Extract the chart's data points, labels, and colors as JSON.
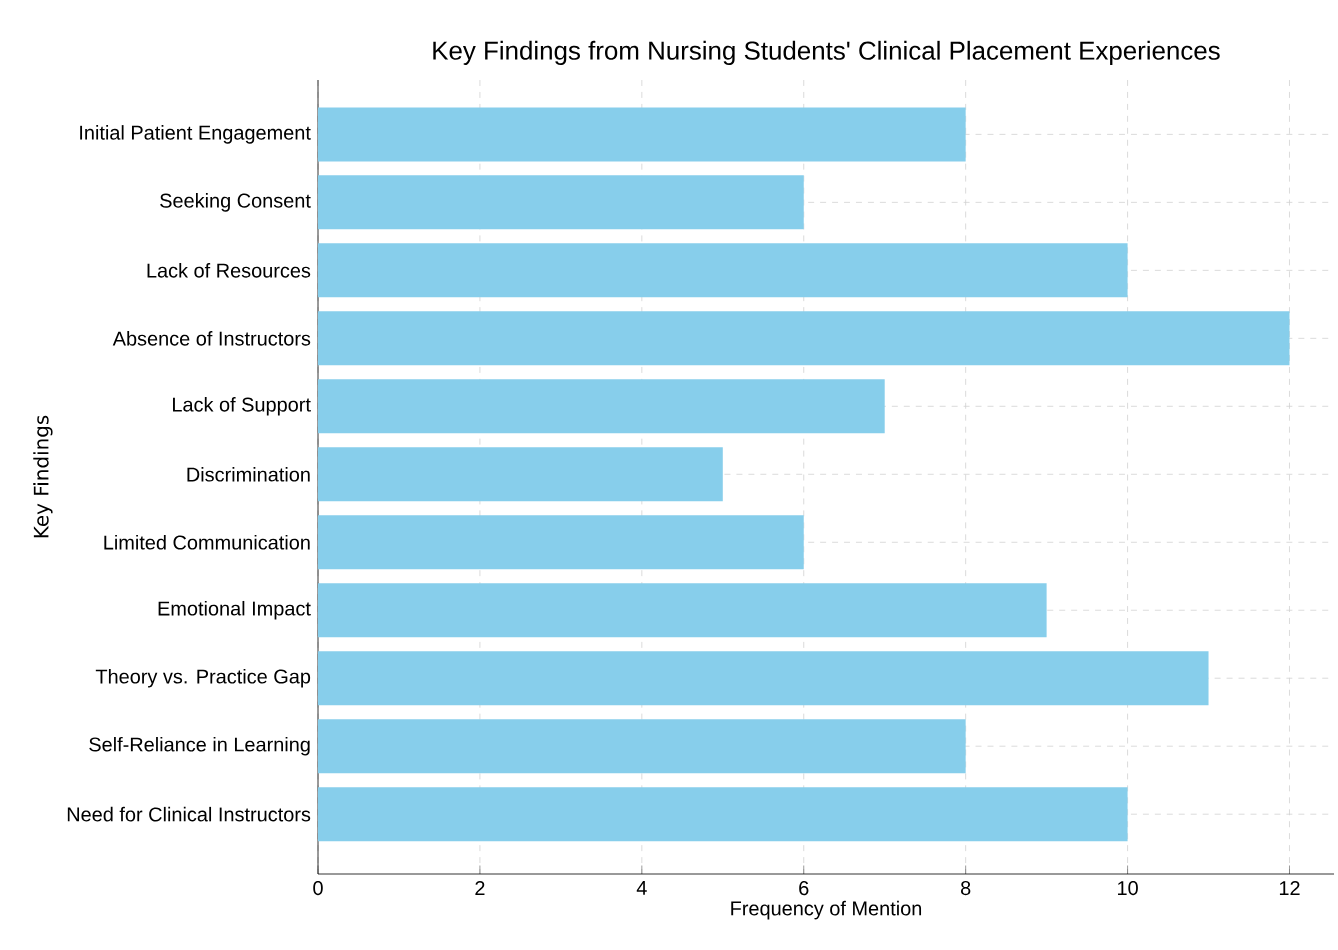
{
  "chart_data": {
    "type": "bar",
    "orientation": "horizontal",
    "title": "Key Findings from Nursing Students' Clinical Placement Experiences",
    "xlabel": "Frequency of Mention",
    "ylabel": "Key Findings",
    "categories": [
      "Initial Patient Engagement",
      "Seeking Consent",
      "Lack of Resources",
      "Absence of Instructors",
      "Lack of Support",
      "Discrimination",
      "Limited Communication",
      "Emotional Impact",
      "Theory vs. Practice Gap",
      "Self-Reliance in Learning",
      "Need for Clinical Instructors"
    ],
    "values": [
      8,
      6,
      10,
      12,
      7,
      5,
      6,
      9,
      11,
      8,
      10
    ],
    "color": "#87ceeb",
    "xlim": [
      0,
      12.55
    ],
    "xticks": [
      0,
      2,
      4,
      6,
      8,
      10,
      12
    ],
    "grid": true
  }
}
